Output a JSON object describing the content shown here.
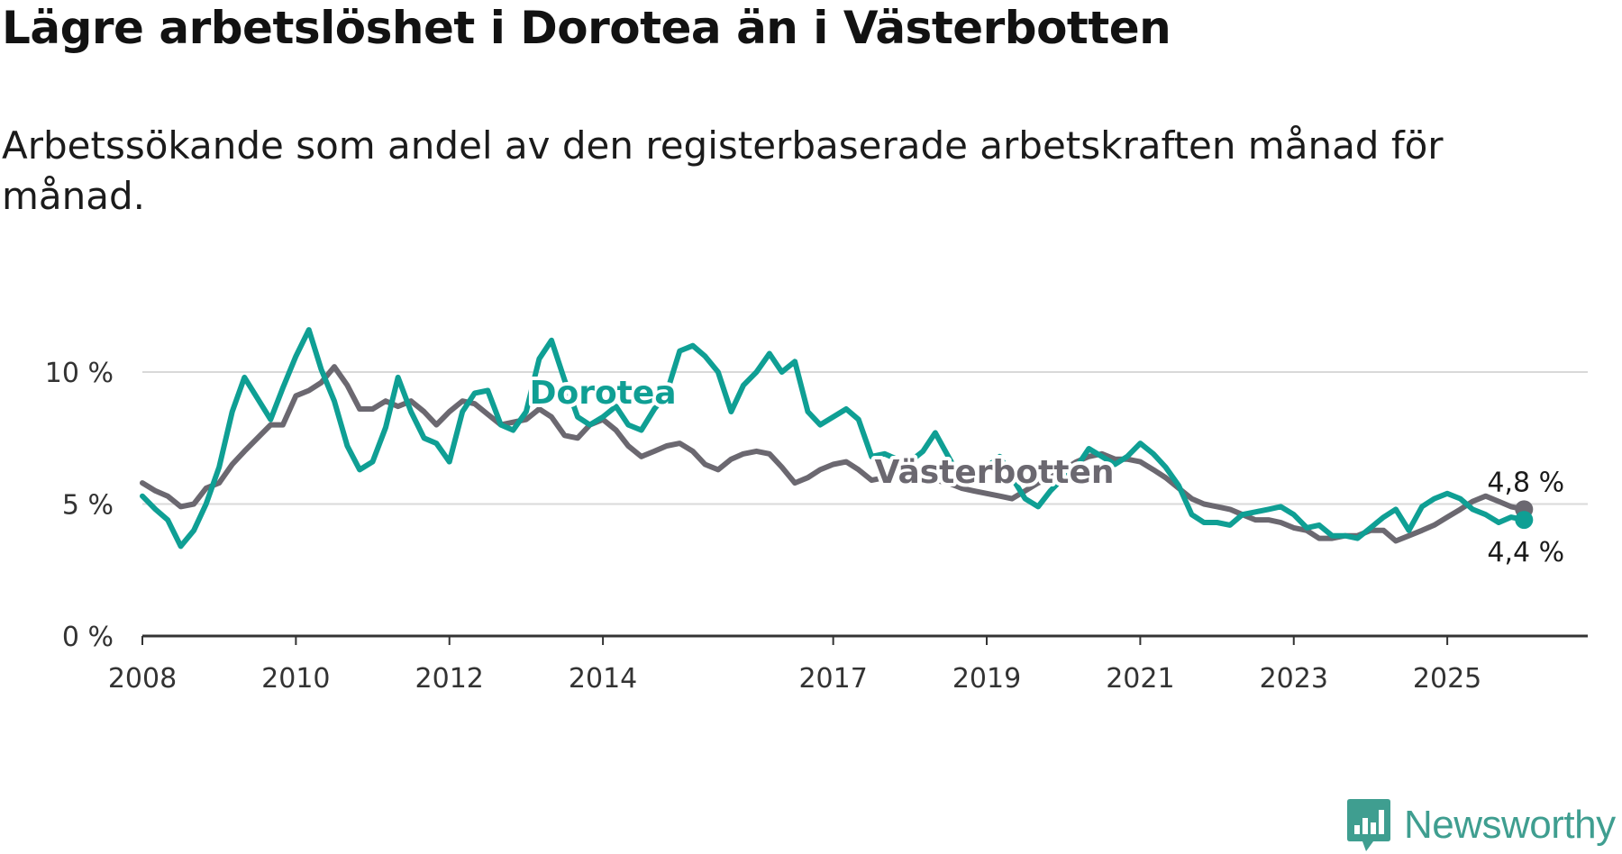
{
  "title": "Lägre arbetslöshet i Dorotea än i Västerbotten",
  "subtitle": "Arbetssökande som andel av den registerbaserade arbetskraften månad för månad.",
  "brand": {
    "name": "Newsworthy",
    "logo_icon": "newsworthy-bar-chart-icon"
  },
  "colors": {
    "dorotea": "#0f9f94",
    "vasterbotten": "#6b6870",
    "grid": "#d9d9d9",
    "axis": "#333333",
    "brand": "#3f9e90"
  },
  "chart_data": {
    "type": "line",
    "title": "Lägre arbetslöshet i Dorotea än i Västerbotten",
    "subtitle": "Arbetssökande som andel av den registerbaserade arbetskraften månad för månad.",
    "xlabel": "",
    "ylabel": "",
    "xlim": [
      2008.0,
      2026.83
    ],
    "ylim": [
      0,
      10
    ],
    "y_ticks": [
      {
        "value": 0,
        "label": "0 %"
      },
      {
        "value": 5,
        "label": "5 %"
      },
      {
        "value": 10,
        "label": "10 %"
      }
    ],
    "x_ticks": [
      {
        "value": 2008,
        "label": "2008"
      },
      {
        "value": 2010,
        "label": "2010"
      },
      {
        "value": 2012,
        "label": "2012"
      },
      {
        "value": 2014,
        "label": "2014"
      },
      {
        "value": 2017,
        "label": "2017"
      },
      {
        "value": 2019,
        "label": "2019"
      },
      {
        "value": 2021,
        "label": "2021"
      },
      {
        "value": 2023,
        "label": "2023"
      },
      {
        "value": 2025,
        "label": "2025"
      }
    ],
    "grid": true,
    "series": [
      {
        "name": "Västerbotten",
        "label": "Västerbotten",
        "end_label": "4,8 %",
        "points": [
          [
            2008.0,
            5.8
          ],
          [
            2008.17,
            5.5
          ],
          [
            2008.33,
            5.3
          ],
          [
            2008.5,
            4.9
          ],
          [
            2008.67,
            5.0
          ],
          [
            2008.83,
            5.6
          ],
          [
            2009.0,
            5.8
          ],
          [
            2009.17,
            6.5
          ],
          [
            2009.33,
            7.0
          ],
          [
            2009.5,
            7.5
          ],
          [
            2009.67,
            8.0
          ],
          [
            2009.83,
            8.0
          ],
          [
            2010.0,
            9.1
          ],
          [
            2010.17,
            9.3
          ],
          [
            2010.33,
            9.6
          ],
          [
            2010.5,
            10.2
          ],
          [
            2010.67,
            9.5
          ],
          [
            2010.83,
            8.6
          ],
          [
            2011.0,
            8.6
          ],
          [
            2011.17,
            8.9
          ],
          [
            2011.33,
            8.7
          ],
          [
            2011.5,
            8.9
          ],
          [
            2011.67,
            8.5
          ],
          [
            2011.83,
            8.0
          ],
          [
            2012.0,
            8.5
          ],
          [
            2012.17,
            8.9
          ],
          [
            2012.33,
            8.8
          ],
          [
            2012.5,
            8.4
          ],
          [
            2012.67,
            8.0
          ],
          [
            2012.83,
            8.1
          ],
          [
            2013.0,
            8.2
          ],
          [
            2013.17,
            8.6
          ],
          [
            2013.33,
            8.3
          ],
          [
            2013.5,
            7.6
          ],
          [
            2013.67,
            7.5
          ],
          [
            2013.83,
            8.0
          ],
          [
            2014.0,
            8.2
          ],
          [
            2014.17,
            7.8
          ],
          [
            2014.33,
            7.2
          ],
          [
            2014.5,
            6.8
          ],
          [
            2014.67,
            7.0
          ],
          [
            2014.83,
            7.2
          ],
          [
            2015.0,
            7.3
          ],
          [
            2015.17,
            7.0
          ],
          [
            2015.33,
            6.5
          ],
          [
            2015.5,
            6.3
          ],
          [
            2015.67,
            6.7
          ],
          [
            2015.83,
            6.9
          ],
          [
            2016.0,
            7.0
          ],
          [
            2016.17,
            6.9
          ],
          [
            2016.33,
            6.4
          ],
          [
            2016.5,
            5.8
          ],
          [
            2016.67,
            6.0
          ],
          [
            2016.83,
            6.3
          ],
          [
            2017.0,
            6.5
          ],
          [
            2017.17,
            6.6
          ],
          [
            2017.33,
            6.3
          ],
          [
            2017.5,
            5.9
          ],
          [
            2017.67,
            6.0
          ],
          [
            2017.83,
            6.1
          ],
          [
            2018.0,
            6.2
          ],
          [
            2018.17,
            6.1
          ],
          [
            2018.33,
            5.9
          ],
          [
            2018.5,
            5.8
          ],
          [
            2018.67,
            5.6
          ],
          [
            2018.83,
            5.5
          ],
          [
            2019.0,
            5.4
          ],
          [
            2019.17,
            5.3
          ],
          [
            2019.33,
            5.2
          ],
          [
            2019.5,
            5.5
          ],
          [
            2019.67,
            5.8
          ],
          [
            2019.83,
            6.0
          ],
          [
            2020.0,
            6.3
          ],
          [
            2020.17,
            6.6
          ],
          [
            2020.33,
            6.8
          ],
          [
            2020.5,
            6.9
          ],
          [
            2020.67,
            6.7
          ],
          [
            2020.83,
            6.7
          ],
          [
            2021.0,
            6.6
          ],
          [
            2021.17,
            6.3
          ],
          [
            2021.33,
            6.0
          ],
          [
            2021.5,
            5.6
          ],
          [
            2021.67,
            5.2
          ],
          [
            2021.83,
            5.0
          ],
          [
            2022.0,
            4.9
          ],
          [
            2022.17,
            4.8
          ],
          [
            2022.33,
            4.6
          ],
          [
            2022.5,
            4.4
          ],
          [
            2022.67,
            4.4
          ],
          [
            2022.83,
            4.3
          ],
          [
            2023.0,
            4.1
          ],
          [
            2023.17,
            4.0
          ],
          [
            2023.33,
            3.7
          ],
          [
            2023.5,
            3.7
          ],
          [
            2023.67,
            3.8
          ],
          [
            2023.83,
            3.8
          ],
          [
            2024.0,
            4.0
          ],
          [
            2024.17,
            4.0
          ],
          [
            2024.33,
            3.6
          ],
          [
            2024.5,
            3.8
          ],
          [
            2024.67,
            4.0
          ],
          [
            2024.83,
            4.2
          ],
          [
            2025.0,
            4.5
          ],
          [
            2025.17,
            4.8
          ],
          [
            2025.33,
            5.1
          ],
          [
            2025.5,
            5.3
          ],
          [
            2025.67,
            5.1
          ],
          [
            2025.83,
            4.9
          ],
          [
            2026.0,
            4.8
          ]
        ]
      },
      {
        "name": "Dorotea",
        "label": "Dorotea",
        "end_label": "4,4 %",
        "points": [
          [
            2008.0,
            5.3
          ],
          [
            2008.17,
            4.8
          ],
          [
            2008.33,
            4.4
          ],
          [
            2008.5,
            3.4
          ],
          [
            2008.67,
            4.0
          ],
          [
            2008.83,
            5.0
          ],
          [
            2009.0,
            6.4
          ],
          [
            2009.17,
            8.5
          ],
          [
            2009.33,
            9.8
          ],
          [
            2009.5,
            9.0
          ],
          [
            2009.67,
            8.2
          ],
          [
            2009.83,
            9.4
          ],
          [
            2010.0,
            10.6
          ],
          [
            2010.17,
            11.6
          ],
          [
            2010.33,
            10.1
          ],
          [
            2010.5,
            8.9
          ],
          [
            2010.67,
            7.2
          ],
          [
            2010.83,
            6.3
          ],
          [
            2011.0,
            6.6
          ],
          [
            2011.17,
            7.9
          ],
          [
            2011.33,
            9.8
          ],
          [
            2011.5,
            8.5
          ],
          [
            2011.67,
            7.5
          ],
          [
            2011.83,
            7.3
          ],
          [
            2012.0,
            6.6
          ],
          [
            2012.17,
            8.5
          ],
          [
            2012.33,
            9.2
          ],
          [
            2012.5,
            9.3
          ],
          [
            2012.67,
            8.0
          ],
          [
            2012.83,
            7.8
          ],
          [
            2013.0,
            8.5
          ],
          [
            2013.17,
            10.5
          ],
          [
            2013.33,
            11.2
          ],
          [
            2013.5,
            9.7
          ],
          [
            2013.67,
            8.3
          ],
          [
            2013.83,
            8.0
          ],
          [
            2014.0,
            8.3
          ],
          [
            2014.17,
            8.7
          ],
          [
            2014.33,
            8.0
          ],
          [
            2014.5,
            7.8
          ],
          [
            2014.67,
            8.6
          ],
          [
            2014.83,
            9.2
          ],
          [
            2015.0,
            10.8
          ],
          [
            2015.17,
            11.0
          ],
          [
            2015.33,
            10.6
          ],
          [
            2015.5,
            10.0
          ],
          [
            2015.67,
            8.5
          ],
          [
            2015.83,
            9.5
          ],
          [
            2016.0,
            10.0
          ],
          [
            2016.17,
            10.7
          ],
          [
            2016.33,
            10.0
          ],
          [
            2016.5,
            10.4
          ],
          [
            2016.67,
            8.5
          ],
          [
            2016.83,
            8.0
          ],
          [
            2017.0,
            8.3
          ],
          [
            2017.17,
            8.6
          ],
          [
            2017.33,
            8.2
          ],
          [
            2017.5,
            6.8
          ],
          [
            2017.67,
            6.9
          ],
          [
            2017.83,
            6.7
          ],
          [
            2018.0,
            6.6
          ],
          [
            2018.17,
            7.0
          ],
          [
            2018.33,
            7.7
          ],
          [
            2018.5,
            6.8
          ],
          [
            2018.67,
            5.9
          ],
          [
            2018.83,
            6.2
          ],
          [
            2019.0,
            6.4
          ],
          [
            2019.17,
            6.8
          ],
          [
            2019.33,
            6.0
          ],
          [
            2019.5,
            5.2
          ],
          [
            2019.67,
            4.9
          ],
          [
            2019.83,
            5.5
          ],
          [
            2020.0,
            6.0
          ],
          [
            2020.17,
            6.4
          ],
          [
            2020.33,
            7.1
          ],
          [
            2020.5,
            6.8
          ],
          [
            2020.67,
            6.5
          ],
          [
            2020.83,
            6.8
          ],
          [
            2021.0,
            7.3
          ],
          [
            2021.17,
            6.9
          ],
          [
            2021.33,
            6.4
          ],
          [
            2021.5,
            5.7
          ],
          [
            2021.67,
            4.6
          ],
          [
            2021.83,
            4.3
          ],
          [
            2022.0,
            4.3
          ],
          [
            2022.17,
            4.2
          ],
          [
            2022.33,
            4.6
          ],
          [
            2022.5,
            4.7
          ],
          [
            2022.67,
            4.8
          ],
          [
            2022.83,
            4.9
          ],
          [
            2023.0,
            4.6
          ],
          [
            2023.17,
            4.1
          ],
          [
            2023.33,
            4.2
          ],
          [
            2023.5,
            3.8
          ],
          [
            2023.67,
            3.8
          ],
          [
            2023.83,
            3.7
          ],
          [
            2024.0,
            4.1
          ],
          [
            2024.17,
            4.5
          ],
          [
            2024.33,
            4.8
          ],
          [
            2024.5,
            4.0
          ],
          [
            2024.67,
            4.9
          ],
          [
            2024.83,
            5.2
          ],
          [
            2025.0,
            5.4
          ],
          [
            2025.17,
            5.2
          ],
          [
            2025.33,
            4.8
          ],
          [
            2025.5,
            4.6
          ],
          [
            2025.67,
            4.3
          ],
          [
            2025.83,
            4.5
          ],
          [
            2026.0,
            4.4
          ]
        ]
      }
    ]
  }
}
